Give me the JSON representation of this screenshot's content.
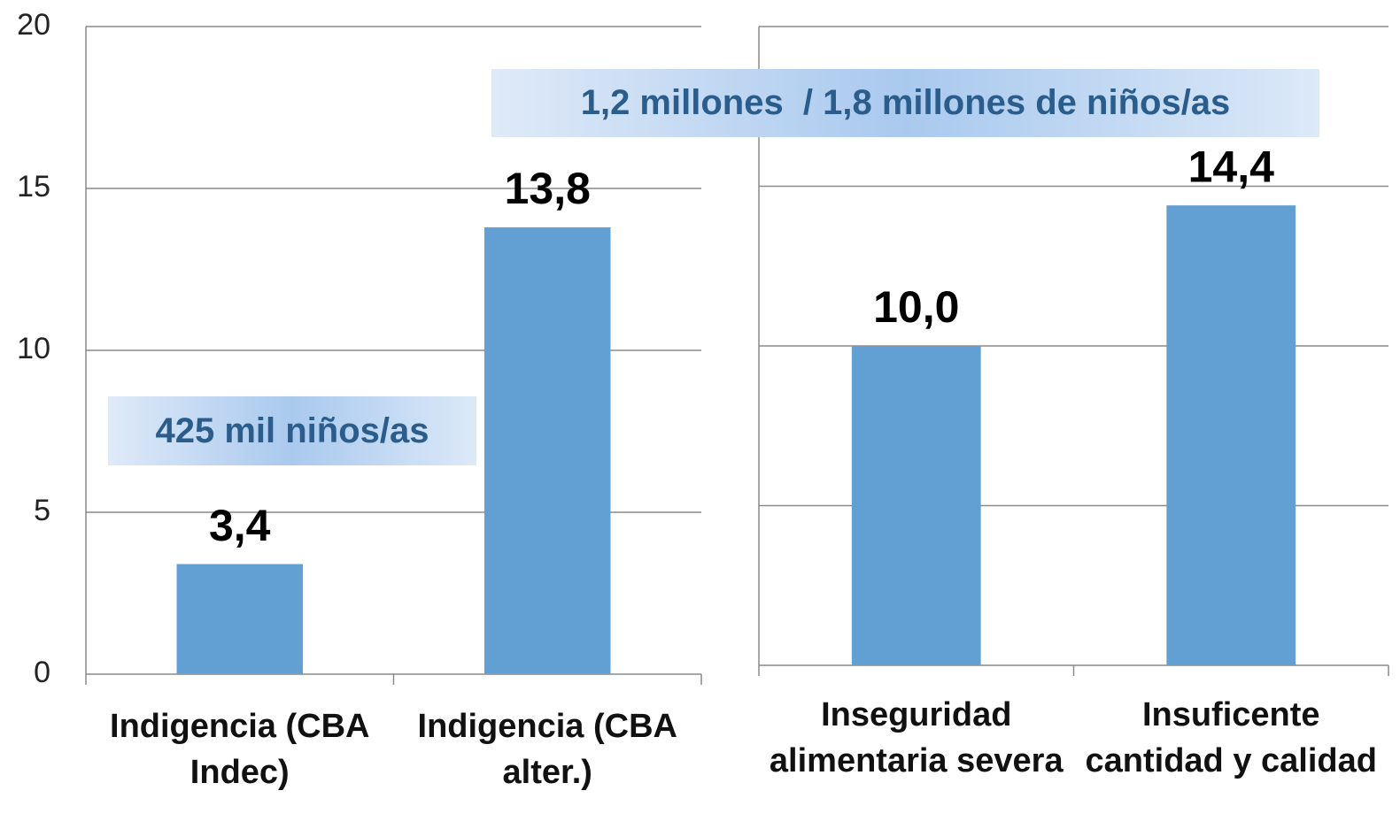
{
  "chart_data": [
    {
      "type": "bar",
      "categories": [
        "Indigencia (CBA Indec)",
        "Indigencia (CBA alter.)"
      ],
      "values": [
        3.4,
        13.8
      ],
      "value_labels": [
        "3,4",
        "13,8"
      ],
      "color": "#629fd2",
      "ylim": [
        0,
        20
      ],
      "yticks": [
        0,
        5,
        10,
        15,
        20
      ],
      "grid": true,
      "annotations": [
        "425 mil niños/as",
        "1,2 millones  / 1,8 millones de niños/as"
      ]
    },
    {
      "type": "bar",
      "categories": [
        "Inseguridad alimentaria severa",
        "Insuficente cantidad y calidad"
      ],
      "values": [
        10.0,
        14.4
      ],
      "value_labels": [
        "10,0",
        "14,4"
      ],
      "color": "#629fd2",
      "ylim": [
        0,
        20
      ],
      "yticks": [
        0,
        5,
        10,
        15,
        20
      ],
      "grid": true
    }
  ]
}
